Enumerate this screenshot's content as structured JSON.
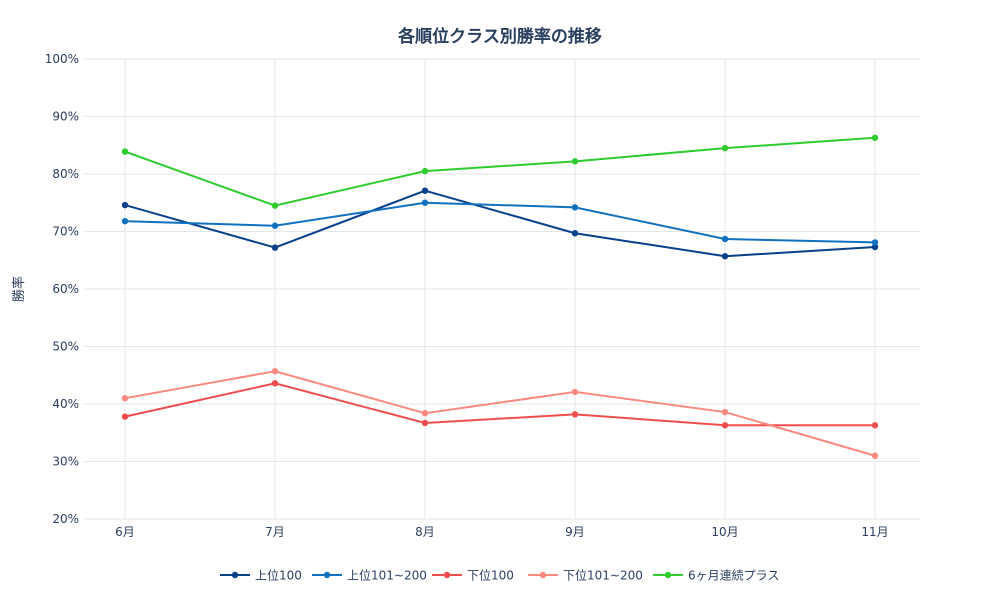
{
  "chart_data": {
    "type": "line",
    "title": "各順位クラス別勝率の推移",
    "xlabel": "",
    "ylabel": "勝率",
    "categories": [
      "6月",
      "7月",
      "8月",
      "9月",
      "10月",
      "11月"
    ],
    "ylim": [
      20,
      100
    ],
    "yticks": [
      "20%",
      "30%",
      "40%",
      "50%",
      "60%",
      "70%",
      "80%",
      "90%",
      "100%"
    ],
    "ytick_values": [
      20,
      30,
      40,
      50,
      60,
      70,
      80,
      90,
      100
    ],
    "grid": true,
    "legend_position": "bottom",
    "series": [
      {
        "name": "上位100",
        "color": "#08408b",
        "values": [
          74.6,
          67.2,
          77.1,
          69.7,
          65.7,
          67.3
        ]
      },
      {
        "name": "上位101~200",
        "color": "#1171c1",
        "values": [
          71.8,
          71.0,
          75.0,
          74.2,
          68.7,
          68.1
        ]
      },
      {
        "name": "下位100",
        "color": "#f04e4e",
        "values": [
          37.8,
          43.6,
          36.7,
          38.2,
          36.3,
          36.3
        ]
      },
      {
        "name": "下位101~200",
        "color": "#fa8a80",
        "values": [
          41.0,
          45.7,
          38.4,
          42.1,
          38.6,
          31.0
        ]
      },
      {
        "name": "6ヶ月連続プラス",
        "color": "#2ecc2e",
        "values": [
          83.9,
          74.5,
          80.5,
          82.2,
          84.5,
          86.3
        ]
      }
    ]
  }
}
